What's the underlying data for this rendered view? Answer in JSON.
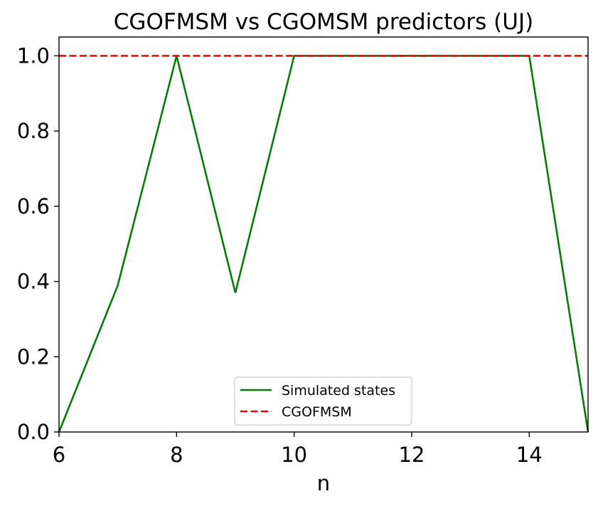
{
  "chart_data": {
    "type": "line",
    "title": "CGOFMSM vs CGOMSM predictors (UJ)",
    "xlabel": "n",
    "ylabel": "",
    "xlim": [
      6,
      15
    ],
    "ylim": [
      0,
      1.05
    ],
    "x_ticks": [
      "6",
      "8",
      "10",
      "12",
      "14"
    ],
    "y_ticks": [
      "0.0",
      "0.2",
      "0.4",
      "0.6",
      "0.8",
      "1.0"
    ],
    "x_tick_values": [
      6,
      8,
      10,
      12,
      14
    ],
    "y_tick_values": [
      0.0,
      0.2,
      0.4,
      0.6,
      0.8,
      1.0
    ],
    "grid": false,
    "legend_position": "lower center",
    "series": [
      {
        "name": "Simulated states",
        "color": "#008000",
        "style": "solid",
        "x": [
          6,
          7,
          8,
          9,
          10,
          11,
          12,
          13,
          14,
          15
        ],
        "y": [
          0.0,
          0.39,
          1.0,
          0.37,
          1.0,
          1.0,
          1.0,
          1.0,
          1.0,
          0.0
        ]
      },
      {
        "name": "CGOFMSM",
        "color": "#ff0000",
        "style": "dashed",
        "x": [
          6,
          15
        ],
        "y": [
          1.0,
          1.0
        ]
      }
    ]
  }
}
